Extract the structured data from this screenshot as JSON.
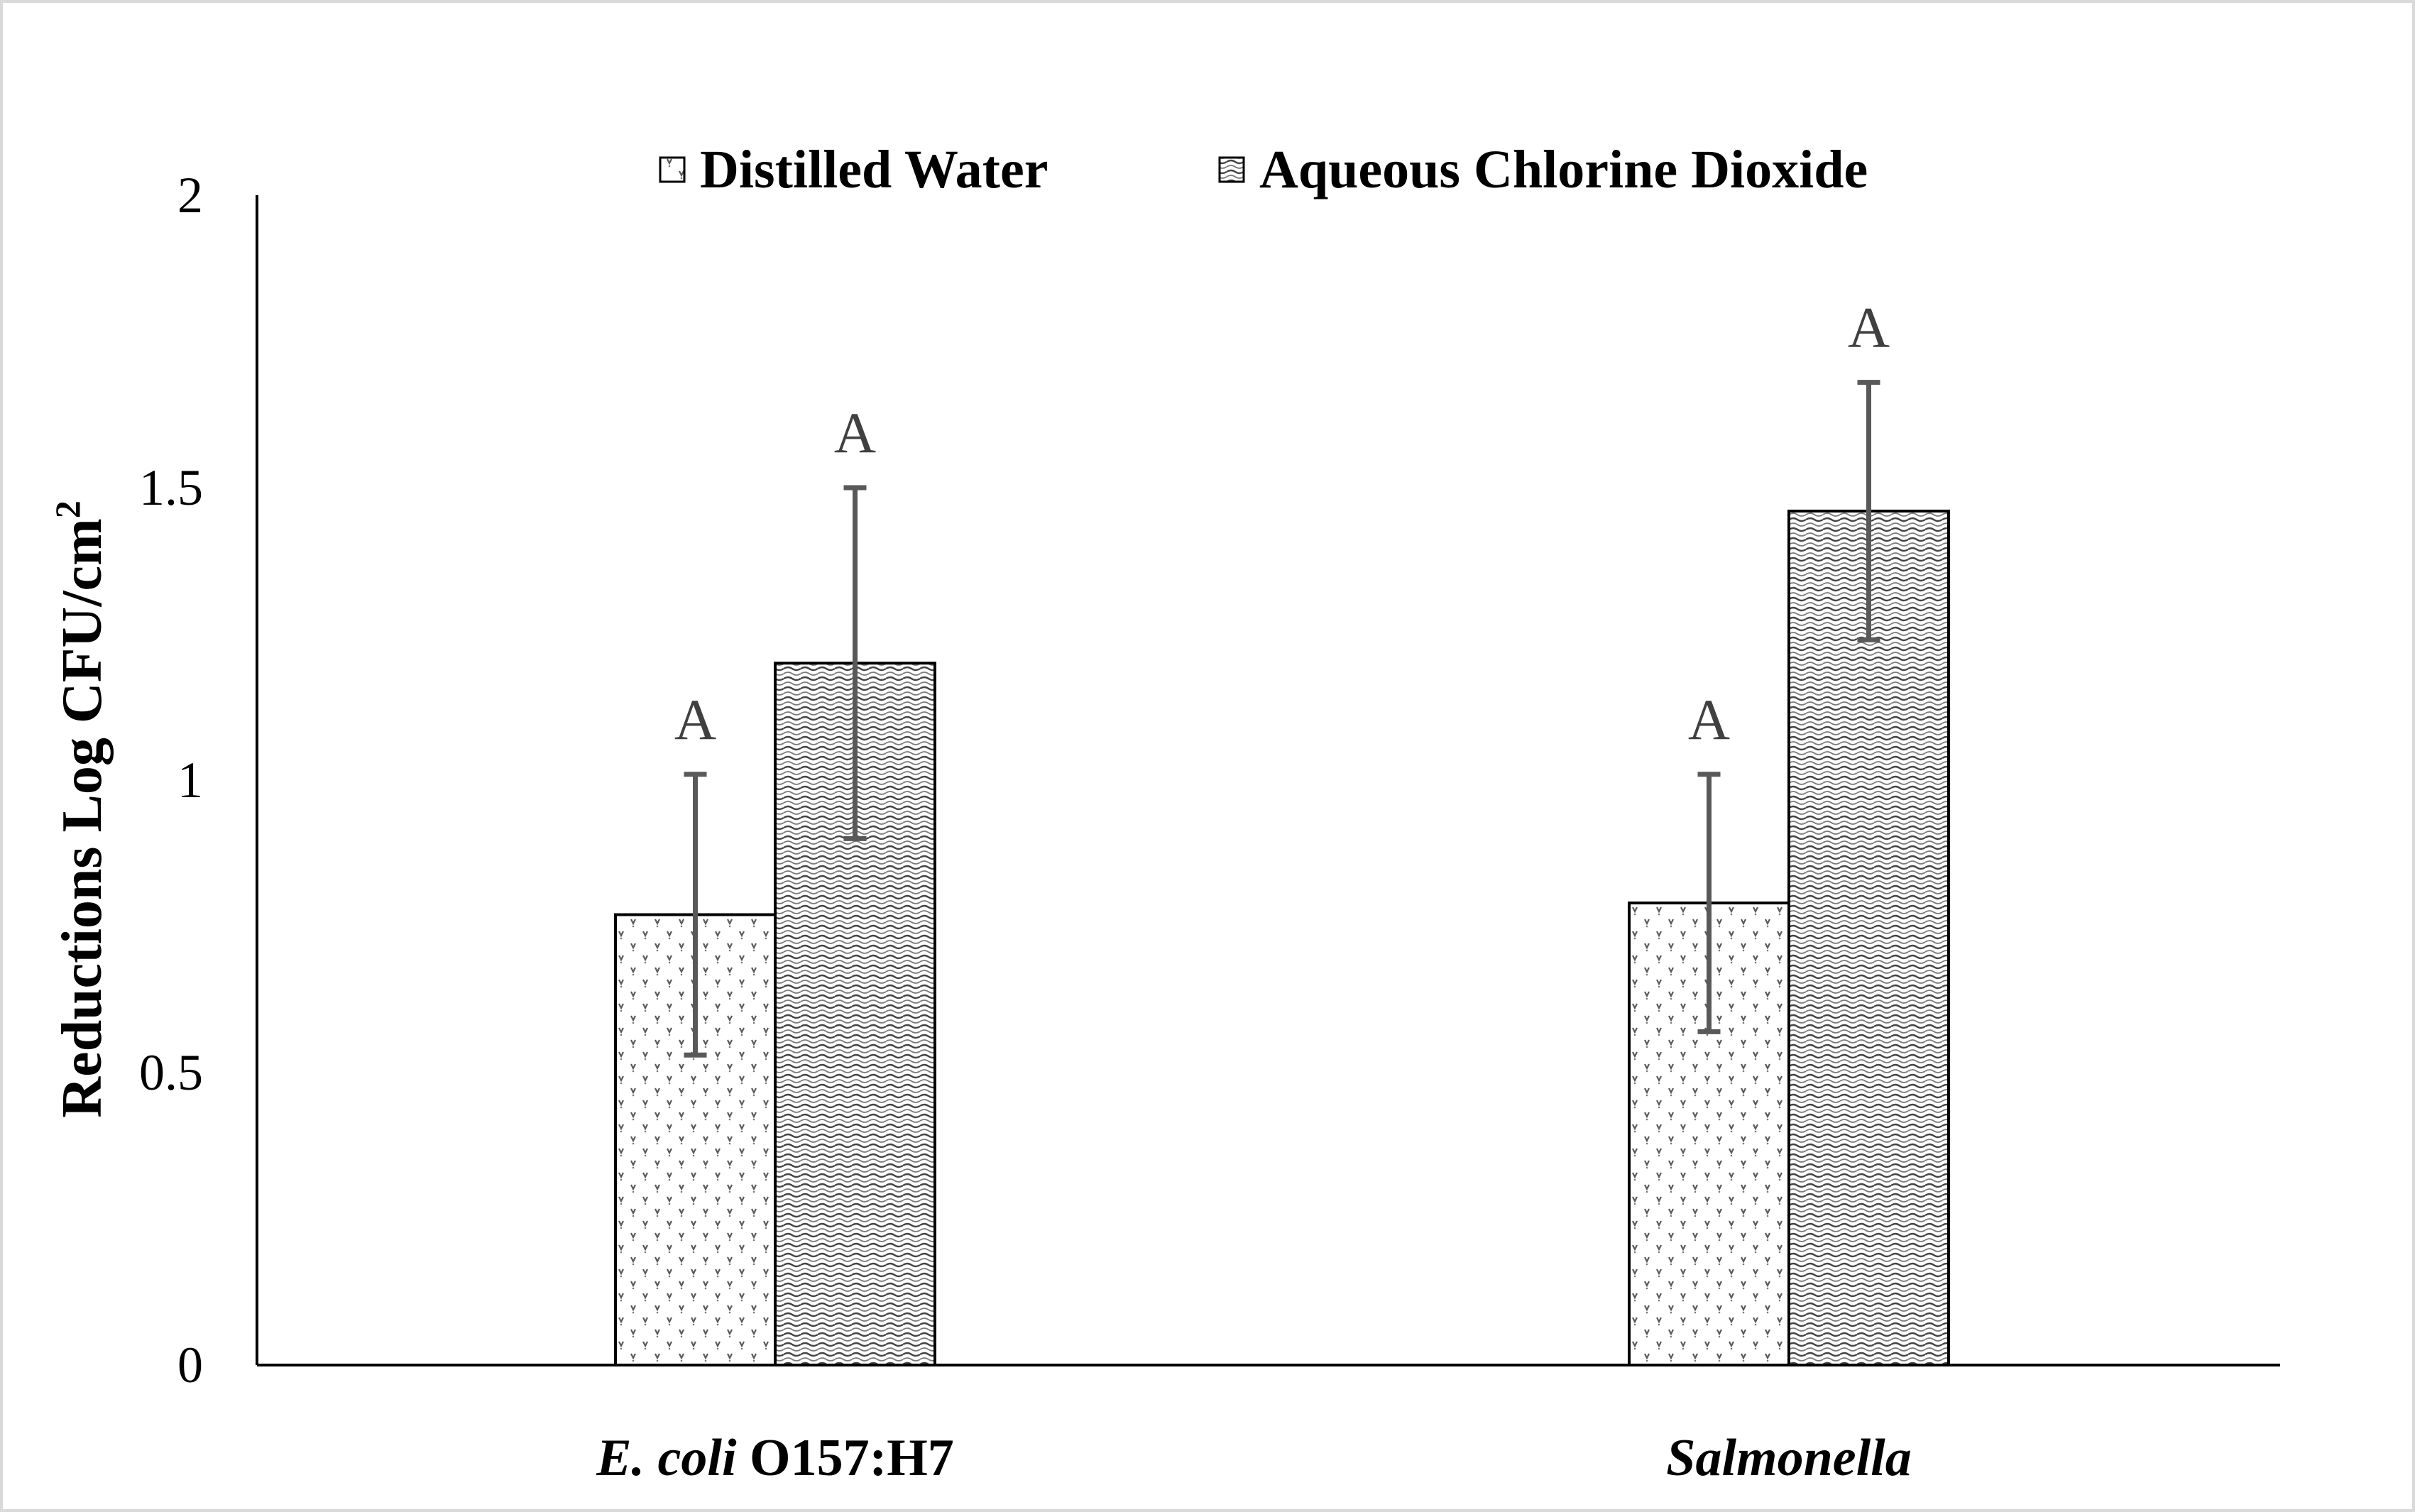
{
  "chart_data": {
    "type": "bar",
    "title": "",
    "xlabel": "",
    "ylabel": "Reductions  Log CFU/cm",
    "ylabel_superscript": "2",
    "ylim": [
      0,
      2
    ],
    "yticks": [
      "0",
      "0.5",
      "1",
      "1.5",
      "2"
    ],
    "ytick_values": [
      0,
      0.5,
      1,
      1.5,
      2
    ],
    "categories": [
      {
        "italic": "E. coli",
        "normal": " O157:H7"
      },
      {
        "italic": "Salmonella",
        "normal": ""
      }
    ],
    "series": [
      {
        "name": "Distilled Water",
        "values": [
          0.77,
          0.79
        ],
        "error": [
          0.24,
          0.22
        ],
        "letters": [
          "A",
          "A"
        ],
        "pattern": "dots"
      },
      {
        "name": "Aqueous Chlorine Dioxide",
        "values": [
          1.2,
          1.46
        ],
        "error": [
          0.3,
          0.22
        ],
        "letters": [
          "A",
          "A"
        ],
        "pattern": "waves"
      }
    ],
    "legend_position": "top-center",
    "grid": false
  },
  "colors": {
    "axis": "#000000",
    "error_bar": "#595959",
    "bar_stroke": "#000000",
    "letter": "#404040",
    "frame": "#d9d9d9"
  }
}
